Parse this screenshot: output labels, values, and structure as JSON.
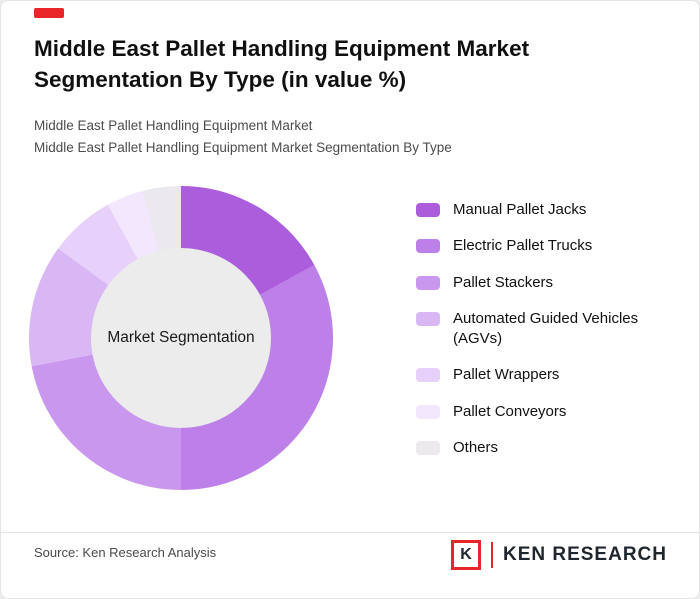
{
  "accent_color": "#e8262a",
  "header": {
    "title_line1": "Middle East Pallet Handling Equipment Market",
    "title_line2": "Segmentation By Type (in value %)",
    "subtitle_line1": "Middle East Pallet Handling Equipment Market",
    "subtitle_line2": "Middle East Pallet Handling Equipment Market Segmentation By Type"
  },
  "chart_data": {
    "type": "pie",
    "variant": "donut",
    "title": "Middle East Pallet Handling Equipment Market Segmentation By Type (in value %)",
    "center_label": "Market Segmentation",
    "categories": [
      "Manual Pallet Jacks",
      "Electric Pallet Trucks",
      "Pallet Stackers",
      "Automated Guided Vehicles (AGVs)",
      "Pallet Wrappers",
      "Pallet Conveyors",
      "Others"
    ],
    "values": [
      17,
      33,
      22,
      13,
      7,
      4,
      4
    ],
    "colors": [
      "#ab5ddb",
      "#bd80e9",
      "#ca97ef",
      "#d9b6f4",
      "#e7d0fa",
      "#f2e7fc",
      "#ebe9ed"
    ],
    "units": "value %",
    "start_angle_deg": 0,
    "legend_position": "right",
    "hole_color": "#ececec"
  },
  "footer": {
    "source": "Source: Ken Research Analysis",
    "logo_letter": "K",
    "logo_text": "KEN RESEARCH"
  }
}
